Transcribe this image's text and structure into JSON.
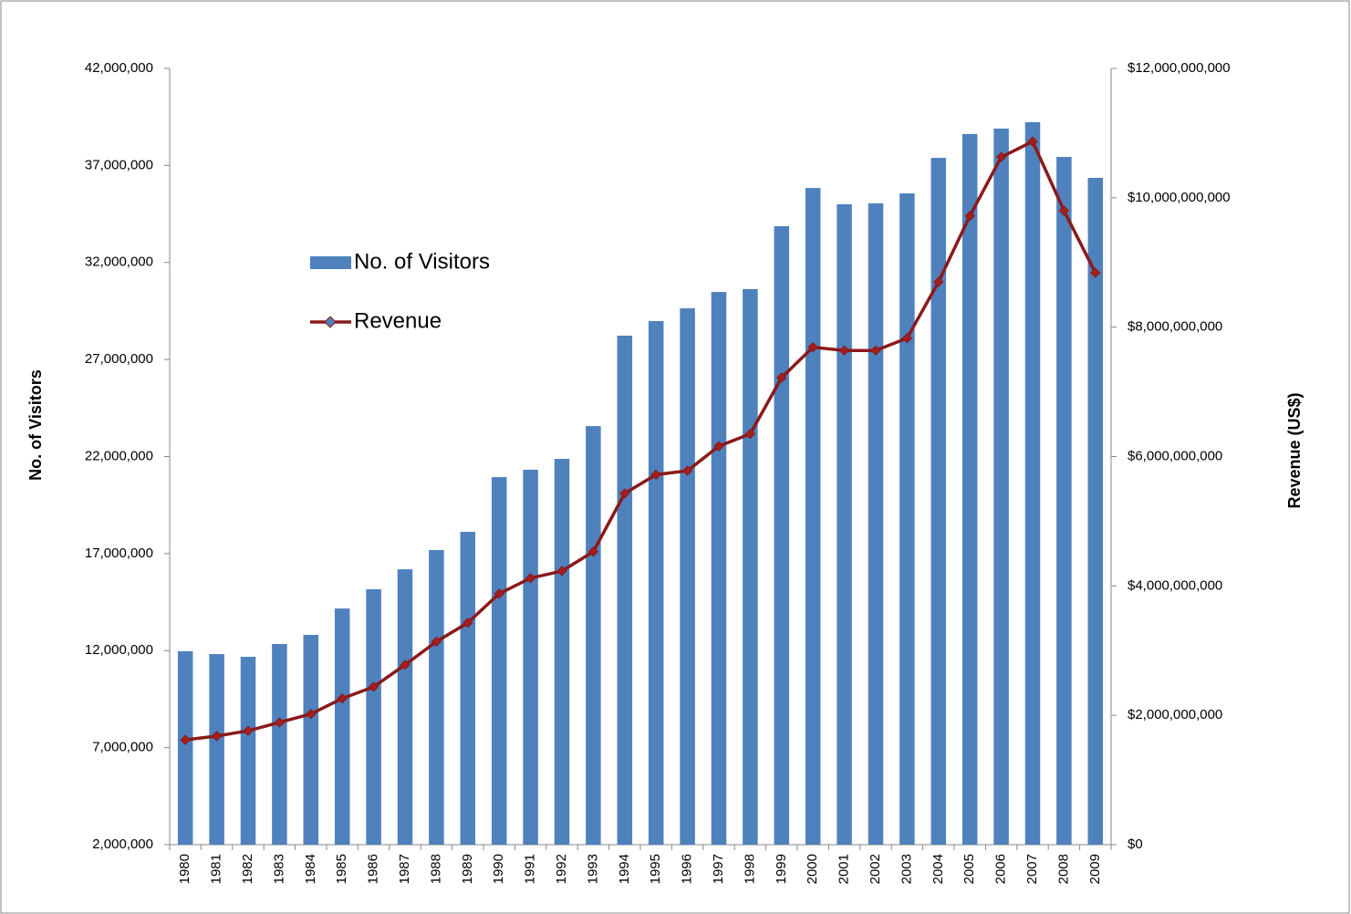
{
  "chart_data": {
    "type": "bar",
    "y_label": "No. of Visitors",
    "y2_label": "Revenue (US$)",
    "legend": "upper-left",
    "categories": [
      "1980",
      "1981",
      "1982",
      "1983",
      "1984",
      "1985",
      "1986",
      "1987",
      "1988",
      "1989",
      "1990",
      "1991",
      "1992",
      "1993",
      "1994",
      "1995",
      "1996",
      "1997",
      "1998",
      "1999",
      "2000",
      "2001",
      "2002",
      "2003",
      "2004",
      "2005",
      "2006",
      "2007",
      "2008",
      "2009"
    ],
    "series": [
      {
        "name": "No. of Visitors",
        "type": "bar",
        "color": "#4f81bd",
        "values": [
          11970000,
          11820000,
          11680000,
          12340000,
          12810000,
          14170000,
          15160000,
          16190000,
          17180000,
          18120000,
          20940000,
          21320000,
          21880000,
          23570000,
          28230000,
          28980000,
          29640000,
          30480000,
          30630000,
          33870000,
          35840000,
          35000000,
          35050000,
          35560000,
          37390000,
          38620000,
          38900000,
          39230000,
          37440000,
          36360000
        ]
      },
      {
        "name": "Revenue",
        "type": "line",
        "axis": "y2",
        "color": "#8b1a1a",
        "values": [
          1620000000,
          1680000000,
          1760000000,
          1890000000,
          2020000000,
          2260000000,
          2440000000,
          2780000000,
          3140000000,
          3430000000,
          3880000000,
          4120000000,
          4230000000,
          4530000000,
          5430000000,
          5720000000,
          5780000000,
          6160000000,
          6350000000,
          7220000000,
          7690000000,
          7640000000,
          7640000000,
          7830000000,
          8700000000,
          9720000000,
          10630000000,
          10870000000,
          9800000000,
          8840000000
        ]
      }
    ],
    "ylim": [
      2000000,
      42000000
    ],
    "yticks": [
      {
        "value": 2000000,
        "label": "2,000,000"
      },
      {
        "value": 7000000,
        "label": "7,000,000"
      },
      {
        "value": 12000000,
        "label": "12,000,000"
      },
      {
        "value": 17000000,
        "label": "17,000,000"
      },
      {
        "value": 22000000,
        "label": "22,000,000"
      },
      {
        "value": 27000000,
        "label": "27,000,000"
      },
      {
        "value": 32000000,
        "label": "32,000,000"
      },
      {
        "value": 37000000,
        "label": "37,000,000"
      },
      {
        "value": 42000000,
        "label": "42,000,000"
      }
    ],
    "y2lim": [
      0,
      12000000000
    ],
    "y2ticks": [
      {
        "value": 0,
        "label": "$0"
      },
      {
        "value": 2000000000,
        "label": "$2,000,000,000"
      },
      {
        "value": 4000000000,
        "label": "$4,000,000,000"
      },
      {
        "value": 6000000000,
        "label": "$6,000,000,000"
      },
      {
        "value": 8000000000,
        "label": "$8,000,000,000"
      },
      {
        "value": 10000000000,
        "label": "$10,000,000,000"
      },
      {
        "value": 12000000000,
        "label": "$12,000,000,000"
      }
    ]
  }
}
